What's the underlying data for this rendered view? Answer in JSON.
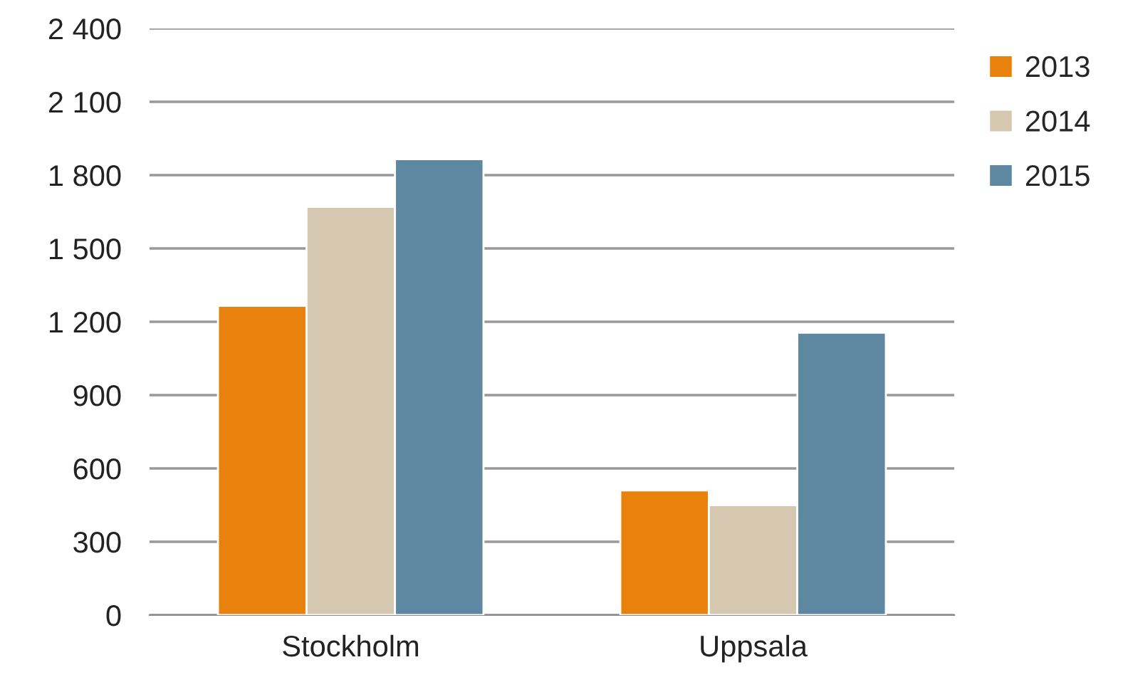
{
  "chart_data": {
    "type": "bar",
    "categories": [
      "Stockholm",
      "Uppsala"
    ],
    "series": [
      {
        "name": "2013",
        "color": "#e8820c",
        "values": [
          1265,
          510
        ]
      },
      {
        "name": "2014",
        "color": "#d6c7b1",
        "values": [
          1670,
          450
        ]
      },
      {
        "name": "2015",
        "color": "#5e87a1",
        "values": [
          1865,
          1155
        ]
      }
    ],
    "ylim": [
      0,
      2400
    ],
    "yticks": [
      0,
      300,
      600,
      900,
      {
        "value": 1200,
        "label": "1 200"
      },
      {
        "value": 1500,
        "label": "1 500"
      },
      {
        "value": 1800,
        "label": "1 800"
      },
      {
        "value": 2100,
        "label": "2 100"
      },
      {
        "value": 2400,
        "label": "2 400"
      }
    ],
    "grid": "y",
    "legend": "top right"
  }
}
